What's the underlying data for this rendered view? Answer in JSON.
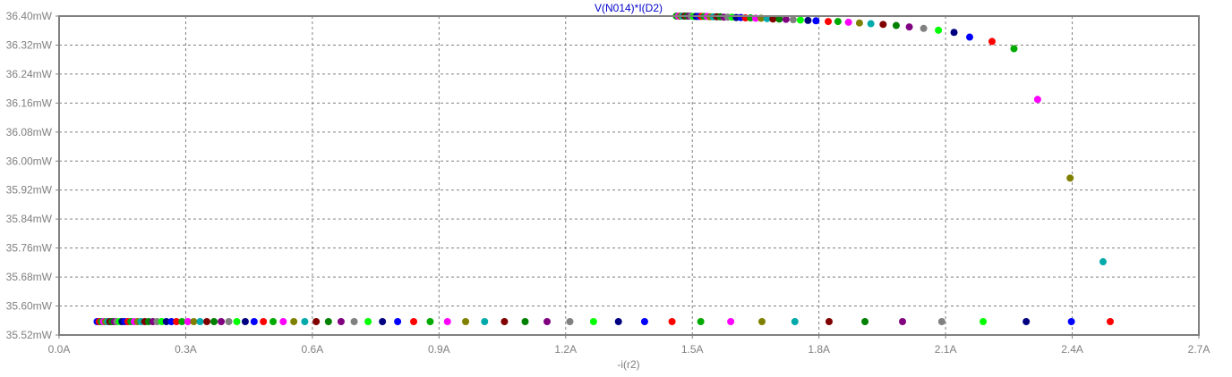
{
  "chart_data": {
    "type": "scatter",
    "title": "V(N014)*I(D2)",
    "xlabel": "-i(r2)",
    "ylabel": "",
    "xlim": [
      0.0,
      2.7
    ],
    "ylim": [
      35.52,
      36.4
    ],
    "x_ticks": [
      0.0,
      0.3,
      0.6,
      0.9,
      1.2,
      1.5,
      1.8,
      2.1,
      2.4,
      2.7
    ],
    "x_tick_labels": [
      "0.0A",
      "0.3A",
      "0.6A",
      "0.9A",
      "1.2A",
      "1.5A",
      "1.8A",
      "2.1A",
      "2.4A",
      "2.7A"
    ],
    "y_ticks": [
      35.52,
      35.6,
      35.68,
      35.76,
      35.84,
      35.92,
      36.0,
      36.08,
      36.16,
      36.24,
      36.32,
      36.4
    ],
    "y_tick_labels": [
      "35.52mW",
      "35.60mW",
      "35.68mW",
      "35.76mW",
      "35.84mW",
      "35.92mW",
      "36.00mW",
      "36.08mW",
      "36.16mW",
      "36.24mW",
      "36.32mW",
      "36.40mW"
    ],
    "grid": true,
    "colors": [
      "#0000ff",
      "#ff0000",
      "#00aa00",
      "#ff00ff",
      "#808000",
      "#00aaaa",
      "#800000",
      "#008000",
      "#800080",
      "#808080",
      "#00ff00",
      "#000080"
    ],
    "bottom_points": {
      "y": 35.557,
      "x": [
        0.09,
        0.095,
        0.1,
        0.105,
        0.11,
        0.115,
        0.12,
        0.125,
        0.131,
        0.137,
        0.143,
        0.149,
        0.156,
        0.163,
        0.17,
        0.178,
        0.186,
        0.194,
        0.203,
        0.212,
        0.222,
        0.232,
        0.243,
        0.254,
        0.266,
        0.278,
        0.291,
        0.305,
        0.319,
        0.334,
        0.35,
        0.367,
        0.384,
        0.402,
        0.421,
        0.441,
        0.462,
        0.484,
        0.507,
        0.531,
        0.556,
        0.582,
        0.609,
        0.638,
        0.668,
        0.699,
        0.732,
        0.766,
        0.802,
        0.84,
        0.879,
        0.92,
        0.963,
        1.008,
        1.055,
        1.104,
        1.156,
        1.21,
        1.266,
        1.325,
        1.387,
        1.452,
        1.52,
        1.591,
        1.665,
        1.743,
        1.824,
        1.909,
        1.998,
        2.091,
        2.189,
        2.291,
        2.398,
        2.49
      ]
    },
    "top_points": {
      "x": [
        1.462,
        1.467,
        1.472,
        1.477,
        1.482,
        1.487,
        1.492,
        1.497,
        1.503,
        1.509,
        1.515,
        1.521,
        1.528,
        1.535,
        1.542,
        1.55,
        1.558,
        1.566,
        1.575,
        1.584,
        1.594,
        1.604,
        1.615,
        1.626,
        1.638,
        1.65,
        1.663,
        1.677,
        1.691,
        1.706,
        1.722,
        1.739,
        1.756,
        1.774,
        1.793,
        1.822,
        1.845,
        1.87,
        1.896,
        1.923,
        1.952,
        1.983,
        2.014,
        2.048,
        2.083,
        2.12,
        2.157,
        2.21,
        2.262,
        2.318,
        2.395,
        2.473
      ],
      "y": [
        36.4,
        36.4,
        36.4,
        36.4,
        36.4,
        36.4,
        36.4,
        36.4,
        36.399,
        36.399,
        36.399,
        36.399,
        36.399,
        36.399,
        36.398,
        36.398,
        36.398,
        36.398,
        36.397,
        36.397,
        36.397,
        36.396,
        36.396,
        36.395,
        36.395,
        36.394,
        36.394,
        36.393,
        36.392,
        36.392,
        36.391,
        36.39,
        36.389,
        36.388,
        36.387,
        36.385,
        36.385,
        36.383,
        36.381,
        36.379,
        36.377,
        36.374,
        36.37,
        36.366,
        36.361,
        36.355,
        36.342,
        36.33,
        36.31,
        36.17,
        35.953,
        35.722
      ]
    }
  }
}
